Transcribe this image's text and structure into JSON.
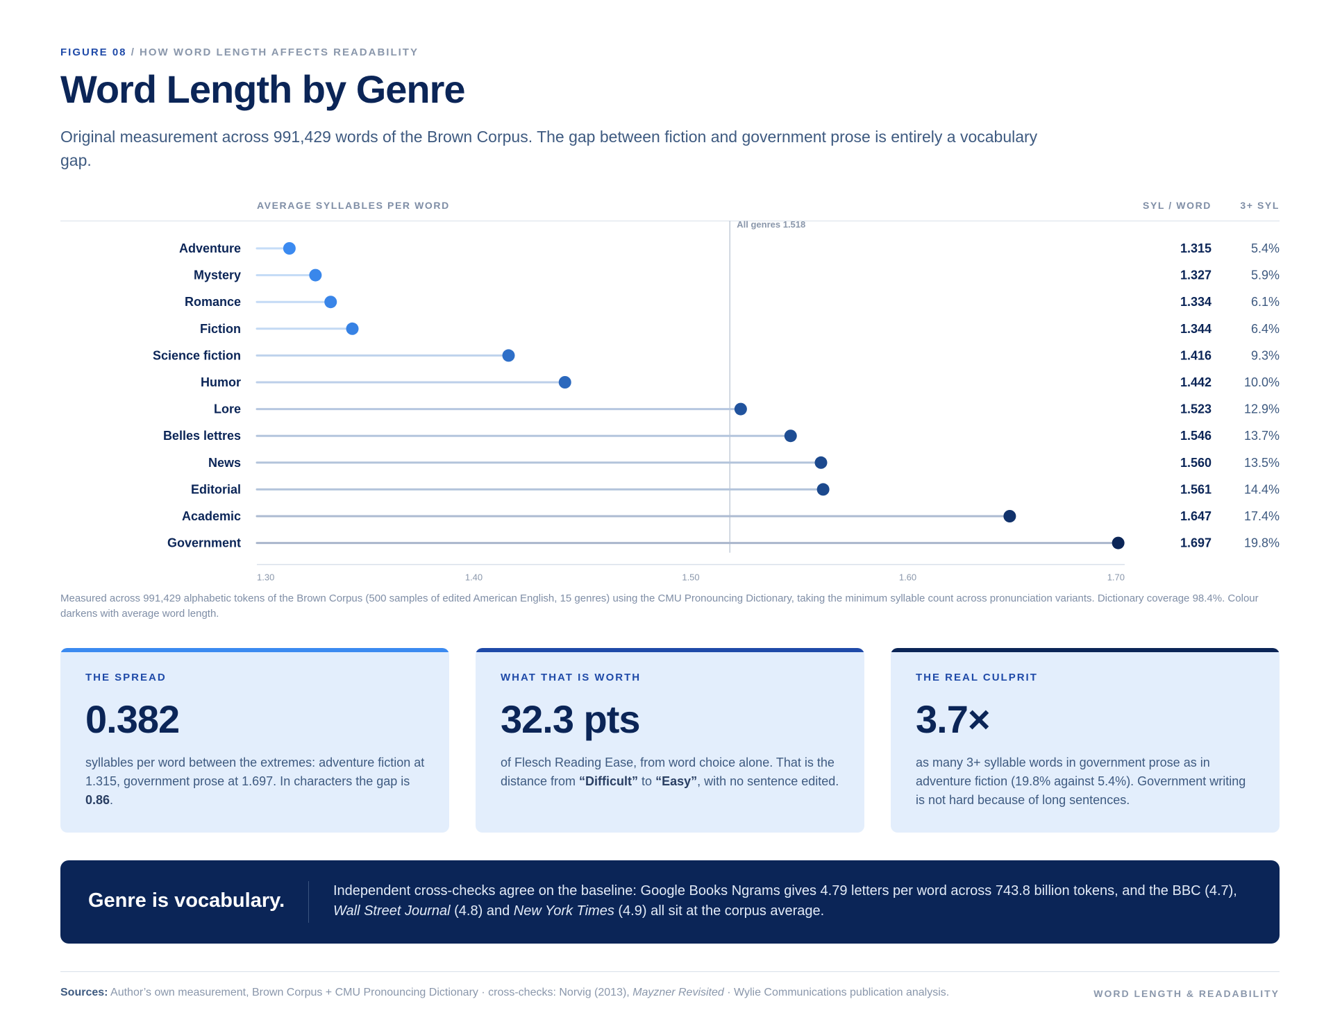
{
  "header": {
    "figure_label": "FIGURE 08",
    "separator": "/",
    "section": "HOW WORD LENGTH AFFECTS READABILITY",
    "title": "Word Length by Genre",
    "lede": "Original measurement across 991,429 words of the Brown Corpus. The gap between fiction and government prose is entirely a vocabulary gap."
  },
  "columns": {
    "chart": "AVERAGE SYLLABLES PER WORD",
    "syl": "SYL / WORD",
    "pct": "3+ SYL"
  },
  "chart_data": {
    "type": "scatter",
    "title": "",
    "xlabel": "AVERAGE SYLLABLES PER WORD",
    "xlim": [
      1.3,
      1.7
    ],
    "xticks": [
      "1.30",
      "1.40",
      "1.50",
      "1.60",
      "1.70"
    ],
    "reference_line": {
      "value": 1.518,
      "label": "All genres 1.518"
    },
    "categories": [
      "Adventure",
      "Mystery",
      "Romance",
      "Fiction",
      "Science fiction",
      "Humor",
      "Lore",
      "Belles lettres",
      "News",
      "Editorial",
      "Academic",
      "Government"
    ],
    "values": [
      1.315,
      1.327,
      1.334,
      1.344,
      1.416,
      1.442,
      1.523,
      1.546,
      1.56,
      1.561,
      1.647,
      1.697
    ],
    "syl_labels": [
      "1.315",
      "1.327",
      "1.334",
      "1.344",
      "1.416",
      "1.442",
      "1.523",
      "1.546",
      "1.560",
      "1.561",
      "1.647",
      "1.697"
    ],
    "three_plus_syl": [
      "5.4%",
      "5.9%",
      "6.1%",
      "6.4%",
      "9.3%",
      "10.0%",
      "12.9%",
      "13.7%",
      "13.5%",
      "14.4%",
      "17.4%",
      "19.8%"
    ],
    "colors": {
      "light": "#3b8af0",
      "dark": "#0b2557",
      "stem_light": "#c5dcf7",
      "stem_dark": "#a9b6cc"
    }
  },
  "note": "Measured across 991,429 alphabetic tokens of the Brown Corpus (500 samples of edited American English, 15 genres) using the CMU Pronouncing Dictionary, taking the minimum syllable count across pronunciation variants. Dictionary coverage 98.4%. Colour darkens with average word length.",
  "cards": [
    {
      "label": "THE SPREAD",
      "big": "0.382",
      "accent": "#3b8af0",
      "body_a": "syllables per word between the extremes: adventure fiction at 1.315, government prose at 1.697. In characters the gap is ",
      "body_b": "0.86",
      "body_c": "."
    },
    {
      "label": "WHAT THAT IS WORTH",
      "big": "32.3 pts",
      "accent": "#1f4aa8",
      "body_a": "of Flesch Reading Ease, from word choice alone. That is the distance from ",
      "body_b": "“Difficult”",
      "body_c": " to ",
      "body_d": "“Easy”",
      "body_e": ", with no sentence edited."
    },
    {
      "label": "THE REAL CULPRIT",
      "big": "3.7×",
      "accent": "#0b2557",
      "body_a": "as many 3+ syllable words in government prose as in adventure fiction (19.8% against 5.4%). Government writing is not hard because of long sentences."
    }
  ],
  "banner": {
    "head": "Genre is vocabulary.",
    "text_a": "Independent cross-checks agree on the baseline: Google Books Ngrams gives 4.79 letters per word across 743.8 billion tokens, and the BBC (4.7), ",
    "text_b": "Wall Street Journal",
    "text_c": " (4.8) and ",
    "text_d": "New York Times",
    "text_e": " (4.9) all sit at the corpus average."
  },
  "footer": {
    "sources_label": "Sources:",
    "sources_a": " Author’s own measurement, Brown Corpus + CMU Pronouncing Dictionary · cross-checks: Norvig (2013), ",
    "sources_b": "Mayzner Revisited",
    "sources_c": " · Wylie Communications publication analysis.",
    "tag": "WORD LENGTH & READABILITY"
  }
}
